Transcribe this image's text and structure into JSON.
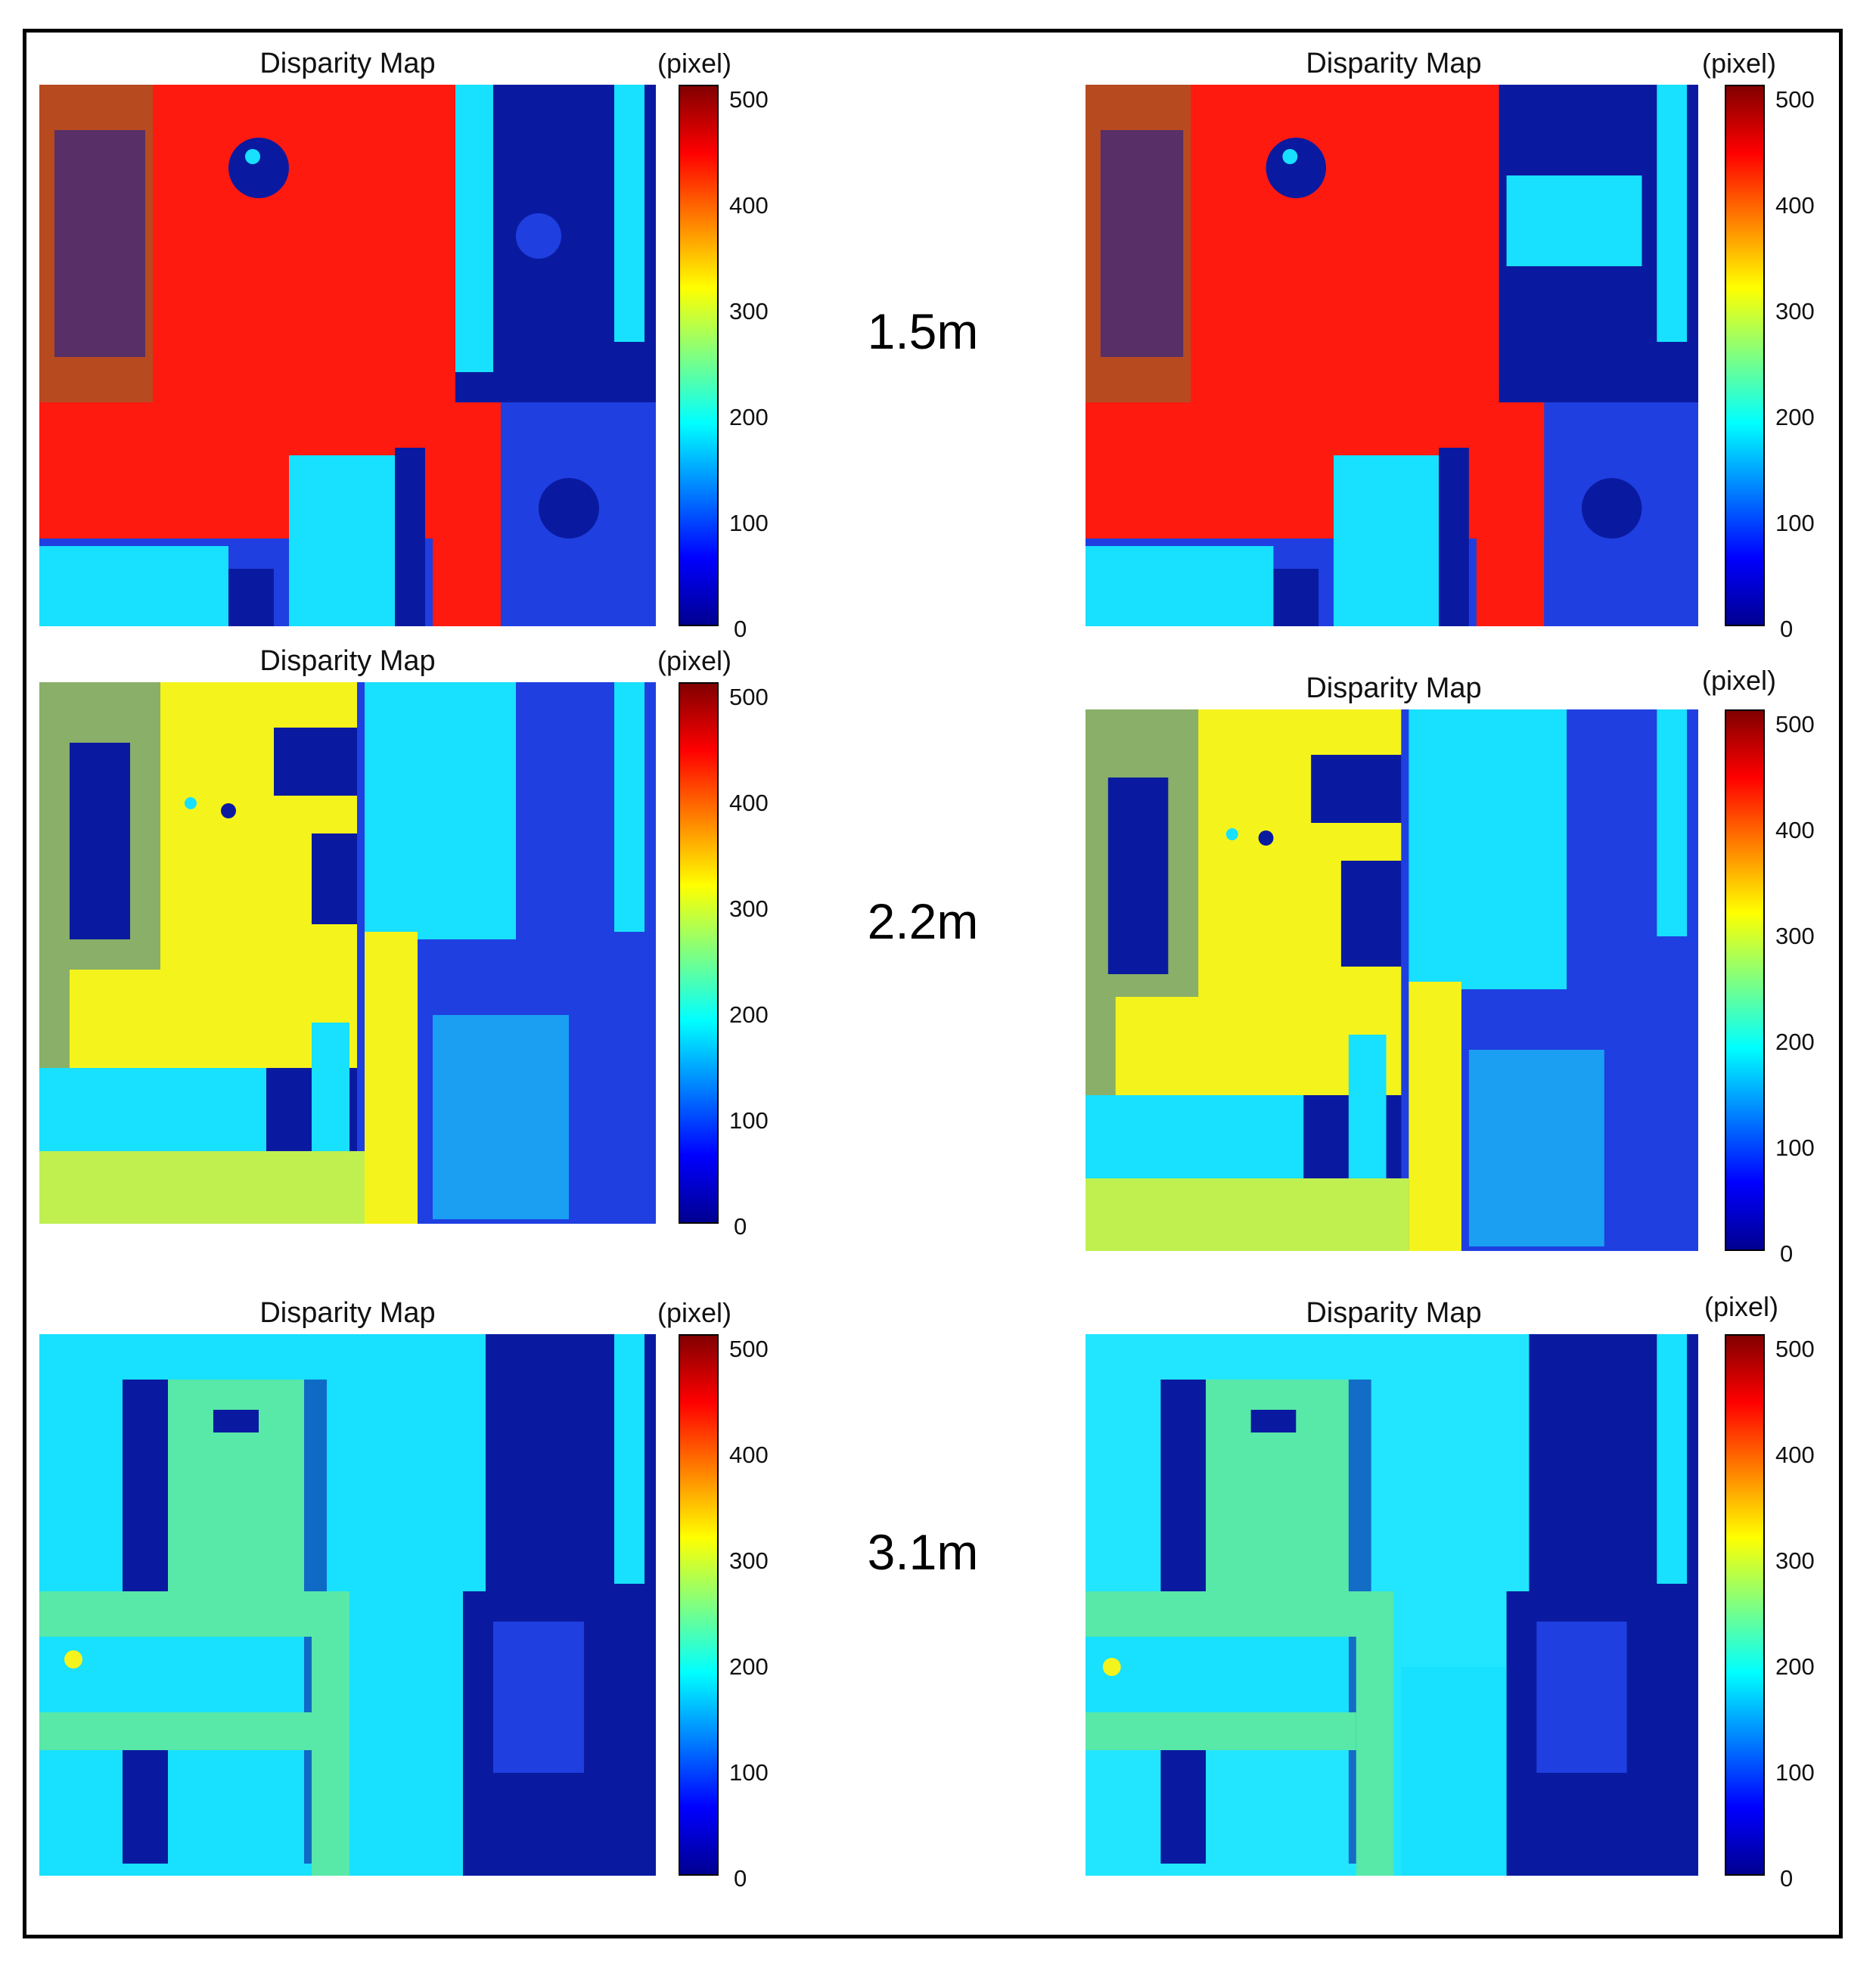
{
  "colormap": {
    "name": "jet",
    "stops": [
      "#00008f",
      "#0000ff",
      "#0080ff",
      "#00ffff",
      "#80ff80",
      "#ffff00",
      "#ff8000",
      "#ff0000",
      "#800000"
    ],
    "ticks": [
      "0",
      "100",
      "200",
      "300",
      "400",
      "500"
    ],
    "range": [
      0,
      500
    ]
  },
  "rows": [
    {
      "distance": "1.5m",
      "panels": [
        {
          "title": "Disparity Map",
          "unit": "(pixel)"
        },
        {
          "title": "Disparity Map",
          "unit": "(pixel)"
        }
      ]
    },
    {
      "distance": "2.2m",
      "panels": [
        {
          "title": "Disparity Map",
          "unit": "(pixel)"
        },
        {
          "title": "Disparity Map",
          "unit": "(pixel)"
        }
      ]
    },
    {
      "distance": "3.1m",
      "panels": [
        {
          "title": "Disparity Map",
          "unit": "(pixel)"
        },
        {
          "title": "Disparity Map",
          "unit": "(pixel)"
        }
      ]
    }
  ],
  "colors": {
    "dark_blue": "#0a1aa0",
    "blue": "#1f3fe0",
    "cyan": "#18e0ff",
    "light_cyan": "#22e6ff",
    "yellow": "#f4f41c",
    "yellow_green": "#bff050",
    "green": "#58e8a8",
    "red": "#ff1a10",
    "orange": "#ff8a10",
    "dark_red": "#9a1010"
  }
}
